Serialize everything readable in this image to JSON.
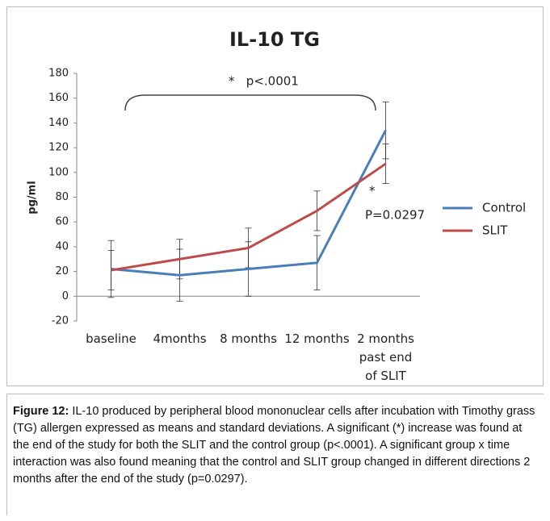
{
  "chart_data": {
    "type": "line",
    "title": "IL-10 TG",
    "y_label": "pg/ml",
    "categories": [
      "baseline",
      "4months",
      "8 months",
      "12 months",
      "2 months\npast end\nof SLIT"
    ],
    "series": [
      {
        "name": "Control",
        "color": "#4a7ebb",
        "values": [
          22,
          17,
          22,
          27,
          134
        ],
        "errors": [
          23,
          21,
          22,
          22,
          23
        ]
      },
      {
        "name": "SLIT",
        "color": "#be4b48",
        "values": [
          21,
          30,
          39,
          69,
          107
        ],
        "errors": [
          16,
          16,
          16,
          16,
          16
        ]
      }
    ],
    "ylim": [
      -20,
      180
    ],
    "yticks": [
      -20,
      0,
      20,
      40,
      60,
      80,
      100,
      120,
      140,
      160,
      180
    ],
    "annotations": [
      "*   p<.0001",
      "*",
      "P=0.0297"
    ],
    "legend": "right"
  },
  "caption": {
    "label": "Figure 12:",
    "text": "IL-10 produced by peripheral blood mononuclear cells after incubation with Timothy grass (TG) allergen expressed as means and standard deviations. A significant (*) increase was found at the end of the study for both the SLIT and the control group (p<.0001). A significant group x time interaction was also found meaning that the control and SLIT group changed in different directions 2 months after the end of the study (p=0.0297)."
  }
}
